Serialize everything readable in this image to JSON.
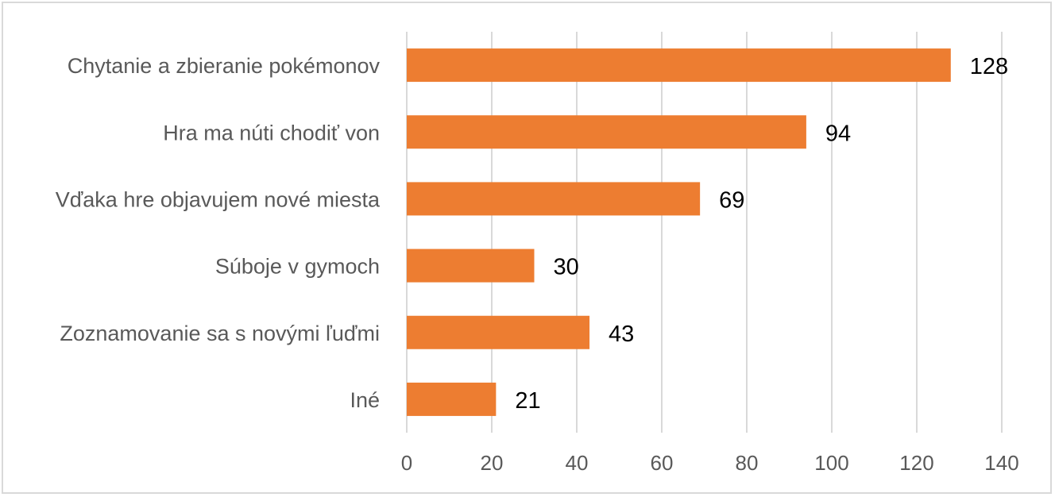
{
  "chart_data": {
    "type": "bar",
    "orientation": "horizontal",
    "categories": [
      "Chytanie a zbieranie pokémonov",
      "Hra ma núti chodiť von",
      "Vďaka hre objavujem nové miesta",
      "Súboje v gymoch",
      "Zoznamovanie sa s novými ľuďmi",
      "Iné"
    ],
    "values": [
      128,
      94,
      69,
      30,
      43,
      21
    ],
    "title": "",
    "xlabel": "",
    "ylabel": "",
    "xlim": [
      0,
      140
    ],
    "x_ticks": [
      0,
      20,
      40,
      60,
      80,
      100,
      120,
      140
    ],
    "grid": "vertical",
    "legend": "none",
    "data_labels": true,
    "bar_color": "#ed7d31",
    "grid_color": "#d9d9d9",
    "text_color": "#595959"
  }
}
